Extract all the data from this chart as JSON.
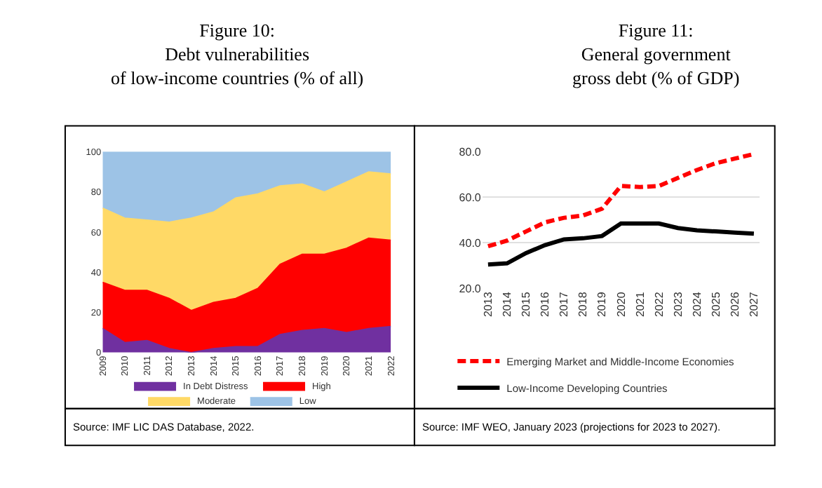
{
  "chart_data": [
    {
      "type": "area",
      "title": "Figure 10:\nDebt vulnerabilities\nof low-income countries (% of all)",
      "stacked": true,
      "categories": [
        "2009",
        "2010",
        "2011",
        "2012",
        "2013",
        "2014",
        "2015",
        "2016",
        "2017",
        "2018",
        "2019",
        "2020",
        "2021",
        "2022"
      ],
      "series": [
        {
          "name": "In Debt Distress",
          "color": "#7030a0",
          "values": [
            12,
            5,
            6,
            2,
            0,
            2,
            3,
            3,
            9,
            11,
            12,
            10,
            12,
            13
          ]
        },
        {
          "name": "High",
          "color": "#ff0000",
          "values": [
            23,
            26,
            25,
            25,
            21,
            23,
            24,
            29,
            35,
            38,
            37,
            42,
            45,
            43
          ]
        },
        {
          "name": "Moderate",
          "color": "#ffd966",
          "values": [
            37,
            36,
            35,
            38,
            46,
            45,
            50,
            47,
            39,
            35,
            31,
            33,
            33,
            33
          ]
        },
        {
          "name": "Low",
          "color": "#9dc3e6",
          "values": [
            28,
            33,
            34,
            35,
            33,
            30,
            23,
            21,
            17,
            16,
            20,
            15,
            10,
            11
          ]
        }
      ],
      "ylim": [
        0,
        100
      ],
      "yticks": [
        0,
        20,
        40,
        60,
        80,
        100
      ],
      "grid": false,
      "legend": "bottom",
      "annotations": [
        "Source: IMF LIC DAS Database, 2022."
      ]
    },
    {
      "type": "line",
      "title": "Figure 11:\nGeneral government\ngross debt (% of GDP)",
      "categories": [
        "2013",
        "2014",
        "2015",
        "2016",
        "2017",
        "2018",
        "2019",
        "2020",
        "2021",
        "2022",
        "2023",
        "2024",
        "2025",
        "2026",
        "2027"
      ],
      "series": [
        {
          "name": "Emerging Market and Middle-Income Economies",
          "color": "#ff0000",
          "line_style": "dashed",
          "values": [
            38.5,
            41,
            45,
            49,
            51,
            52,
            55,
            65,
            64.5,
            65,
            68.5,
            72,
            75,
            77,
            79
          ]
        },
        {
          "name": "Low-Income Developing Countries",
          "color": "#000000",
          "line_style": "solid",
          "values": [
            30.5,
            31,
            35.5,
            39,
            41.5,
            42,
            43,
            48.5,
            48.5,
            48.5,
            46.5,
            45.5,
            45,
            44.5,
            44
          ]
        }
      ],
      "ylim": [
        20,
        80
      ],
      "yticks": [
        {
          "value": 20,
          "label": "20.0"
        },
        {
          "value": 40,
          "label": "40.0"
        },
        {
          "value": 60,
          "label": "60.0"
        },
        {
          "value": 80,
          "label": "80.0"
        }
      ],
      "grid": "y",
      "legend": "bottom",
      "marker": "none",
      "annotations": [
        "Source: IMF WEO, January 2023 (projections for 2023 to 2027)."
      ]
    }
  ]
}
